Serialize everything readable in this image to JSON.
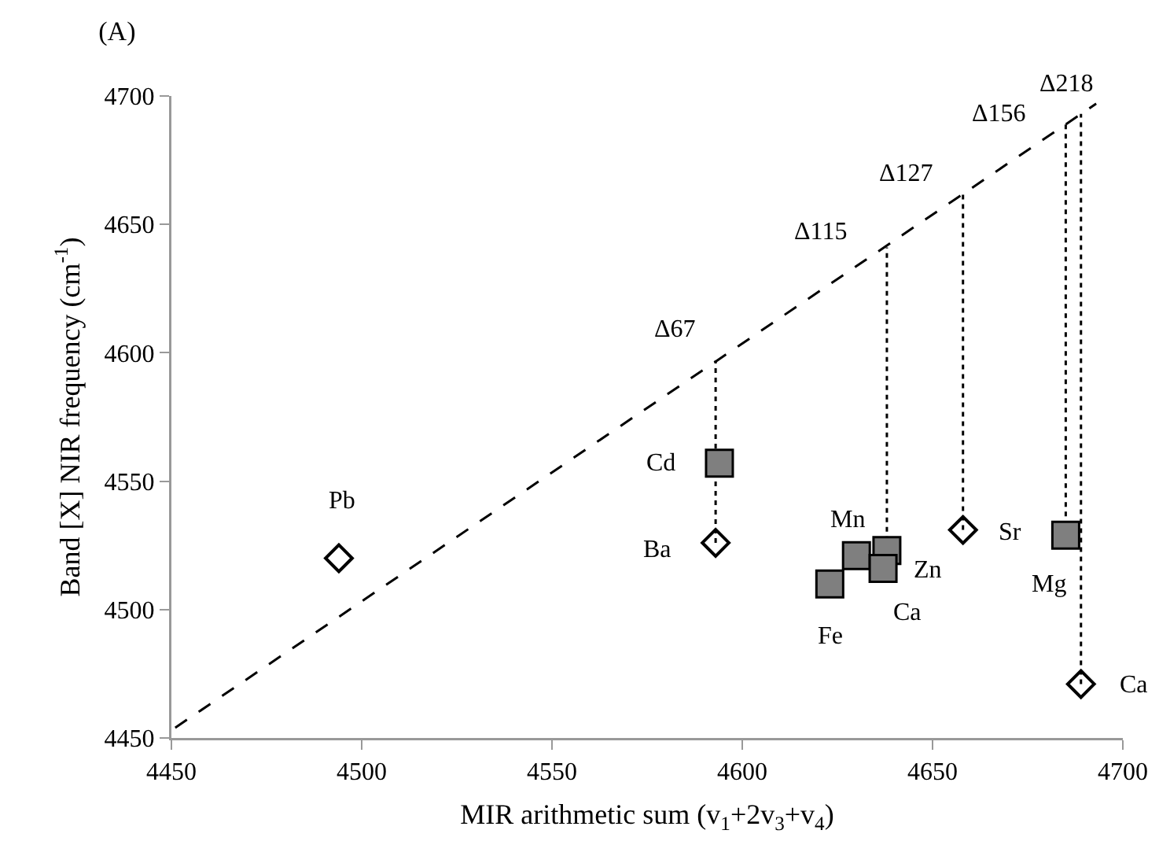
{
  "chart_data": {
    "type": "scatter",
    "title": "(A)",
    "xlabel": "MIR arithmetic sum (v$_{1}$+2v$_{3}$+v$_{4}$)",
    "ylabel": "Band [X] NIR frequency (cm$^{-1}$)",
    "xlim": [
      4450,
      4700
    ],
    "xticks": [
      4450,
      4500,
      4550,
      4600,
      4650,
      4700
    ],
    "ylim": [
      4450,
      4700
    ],
    "yticks": [
      4450,
      4500,
      4550,
      4600,
      4650,
      4700
    ],
    "grid": false,
    "series": [
      {
        "type": "line",
        "color": "#000000",
        "line_style": "dashed",
        "marker": "none",
        "x": [
          4451,
          4693
        ],
        "values": [
          4454,
          4697
        ]
      },
      {
        "type": "line",
        "color": "#000000",
        "line_style": "dotted",
        "marker": "none",
        "x": [
          4593,
          4593
        ],
        "values": [
          4526,
          4597
        ]
      },
      {
        "type": "line",
        "color": "#000000",
        "line_style": "dotted",
        "marker": "none",
        "x": [
          4638,
          4638
        ],
        "values": [
          4523,
          4641
        ]
      },
      {
        "type": "line",
        "color": "#000000",
        "line_style": "dotted",
        "marker": "none",
        "x": [
          4658,
          4658
        ],
        "values": [
          4531,
          4662
        ]
      },
      {
        "type": "line",
        "color": "#000000",
        "line_style": "dotted",
        "marker": "none",
        "x": [
          4685,
          4685
        ],
        "values": [
          4529,
          4689
        ]
      },
      {
        "type": "line",
        "color": "#000000",
        "line_style": "dotted",
        "marker": "none",
        "x": [
          4689,
          4689
        ],
        "values": [
          4471,
          4693
        ]
      },
      {
        "type": "scatter",
        "color": "#7f7f7f",
        "marker": "square",
        "x": [
          4594,
          4630,
          4638,
          4637,
          4623,
          4685
        ],
        "values": [
          4557,
          4521,
          4523,
          4516,
          4510,
          4529
        ]
      },
      {
        "type": "scatter",
        "color": "#000000",
        "marker": "diamond",
        "x": [
          4494,
          4593,
          4658,
          4689
        ],
        "values": [
          4520,
          4526,
          4531,
          4471
        ]
      }
    ],
    "annotations": [
      {
        "text": "Pb",
        "x": 4494,
        "y": 4520
      },
      {
        "text": "Cd",
        "x": 4594,
        "y": 4557
      },
      {
        "text": "Ba",
        "x": 4593,
        "y": 4526
      },
      {
        "text": "Mn",
        "x": 4630,
        "y": 4521
      },
      {
        "text": "Zn",
        "x": 4638,
        "y": 4523
      },
      {
        "text": "Ca",
        "x": 4637,
        "y": 4516
      },
      {
        "text": "Fe",
        "x": 4623,
        "y": 4510
      },
      {
        "text": "Sr",
        "x": 4658,
        "y": 4531
      },
      {
        "text": "Mg",
        "x": 4685,
        "y": 4529
      },
      {
        "text": "Ca",
        "x": 4689,
        "y": 4471
      },
      {
        "text": "Δ67",
        "x": 4593,
        "y": 4597
      },
      {
        "text": "Δ115",
        "x": 4638,
        "y": 4641
      },
      {
        "text": "Δ127",
        "x": 4658,
        "y": 4662
      },
      {
        "text": "Δ156",
        "x": 4685,
        "y": 4689
      },
      {
        "text": "Δ218",
        "x": 4689,
        "y": 4693
      }
    ]
  }
}
